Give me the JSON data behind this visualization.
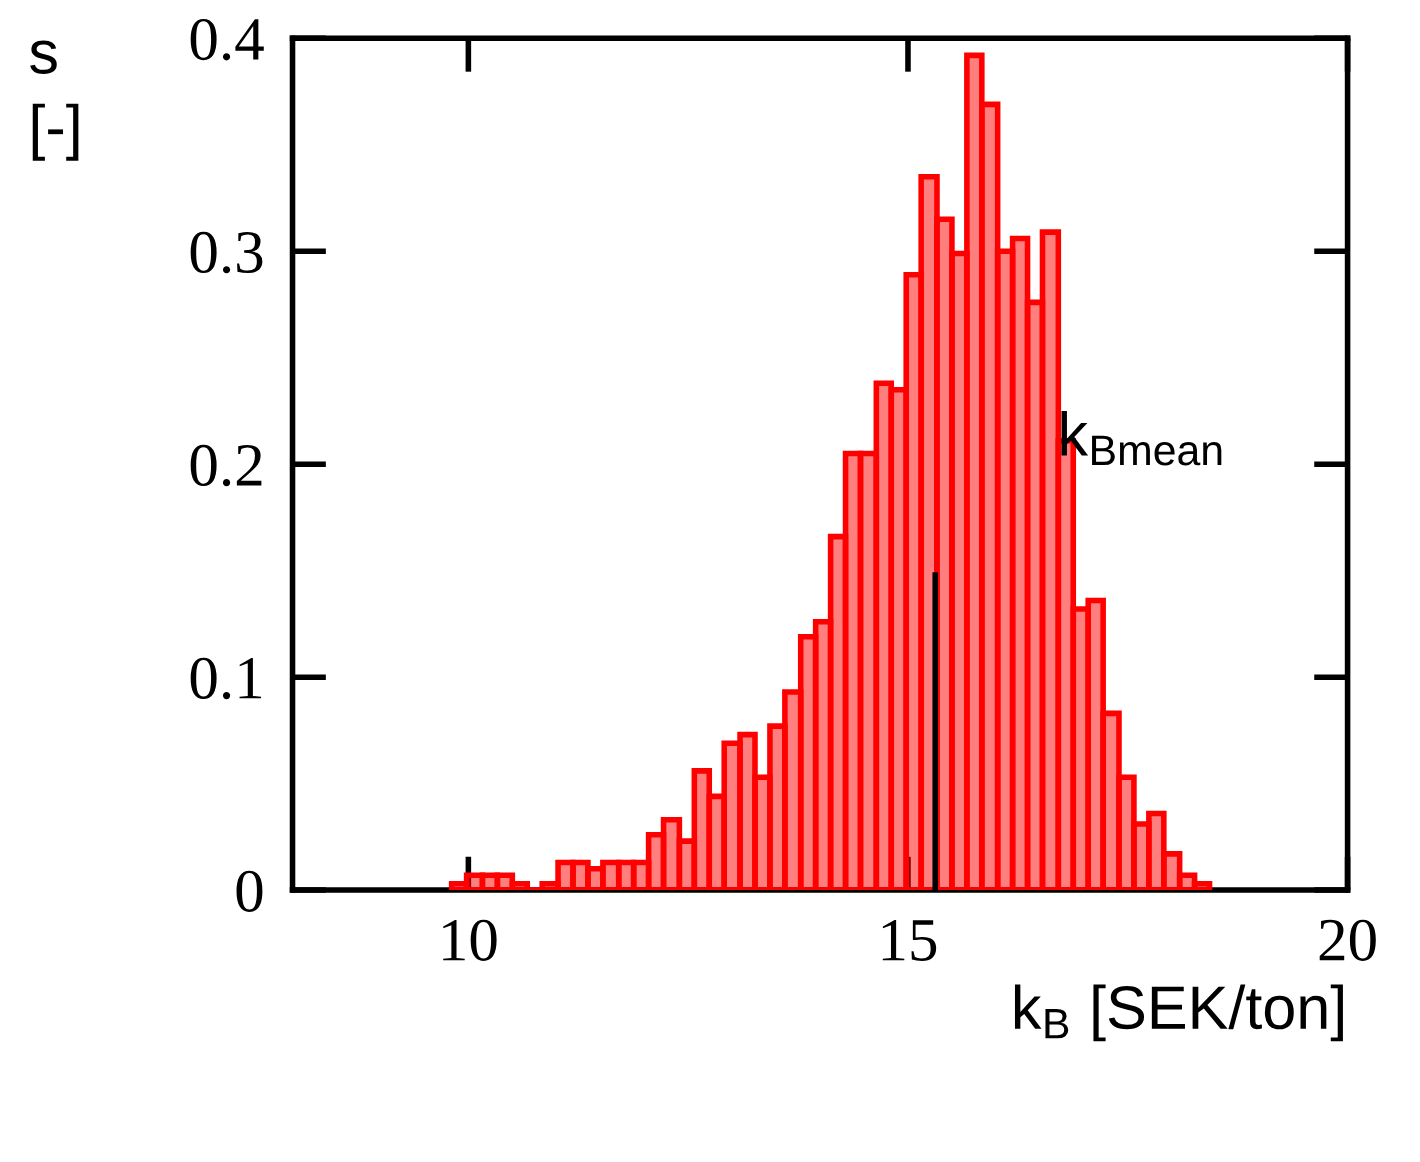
{
  "chart_data": {
    "type": "histogram",
    "xlabel": "k$_{B}$ [SEK/ton]",
    "ylabel": "s\n[-]",
    "bins": [
      9.81,
      9.98,
      10.16,
      10.33,
      10.5,
      10.67,
      10.84,
      11.02,
      11.19,
      11.36,
      11.53,
      11.71,
      11.88,
      12.05,
      12.22,
      12.4,
      12.57,
      12.74,
      12.91,
      13.09,
      13.26,
      13.43,
      13.6,
      13.78,
      13.95,
      14.12,
      14.29,
      14.46,
      14.64,
      14.81,
      14.98,
      15.15,
      15.33,
      15.5,
      15.67,
      15.84,
      16.02,
      16.19,
      16.36,
      16.53,
      16.71,
      16.88,
      17.05,
      17.22,
      17.4,
      17.57,
      17.74,
      17.91,
      18.09,
      18.26,
      18.43
    ],
    "values": [
      0.003,
      0.007,
      0.007,
      0.007,
      0.003,
      0,
      0.003,
      0.013,
      0.013,
      0.01,
      0.013,
      0.013,
      0.013,
      0.026,
      0.033,
      0.023,
      0.056,
      0.044,
      0.069,
      0.073,
      0.053,
      0.077,
      0.093,
      0.119,
      0.126,
      0.166,
      0.205,
      0.205,
      0.238,
      0.235,
      0.289,
      0.335,
      0.315,
      0.299,
      0.392,
      0.369,
      0.3,
      0.306,
      0.276,
      0.309,
      0.211,
      0.132,
      0.136,
      0.083,
      0.053,
      0.031,
      0.036,
      0.017,
      0.007,
      0.003
    ],
    "color": "#ff0000",
    "series": [
      {
        "type": "line",
        "x": [
          15.31,
          15.31
        ],
        "values": [
          0,
          0.148
        ],
        "color": "#000000"
      }
    ],
    "annotations": [
      "k$_{Bmean}$"
    ],
    "xlim": [
      8,
      20
    ],
    "xticks": [
      10,
      15,
      20
    ],
    "ylim": [
      0,
      0.4
    ],
    "yticks": [
      0,
      0.1,
      0.2,
      0.3,
      0.4
    ],
    "grid": false,
    "legend": false
  }
}
